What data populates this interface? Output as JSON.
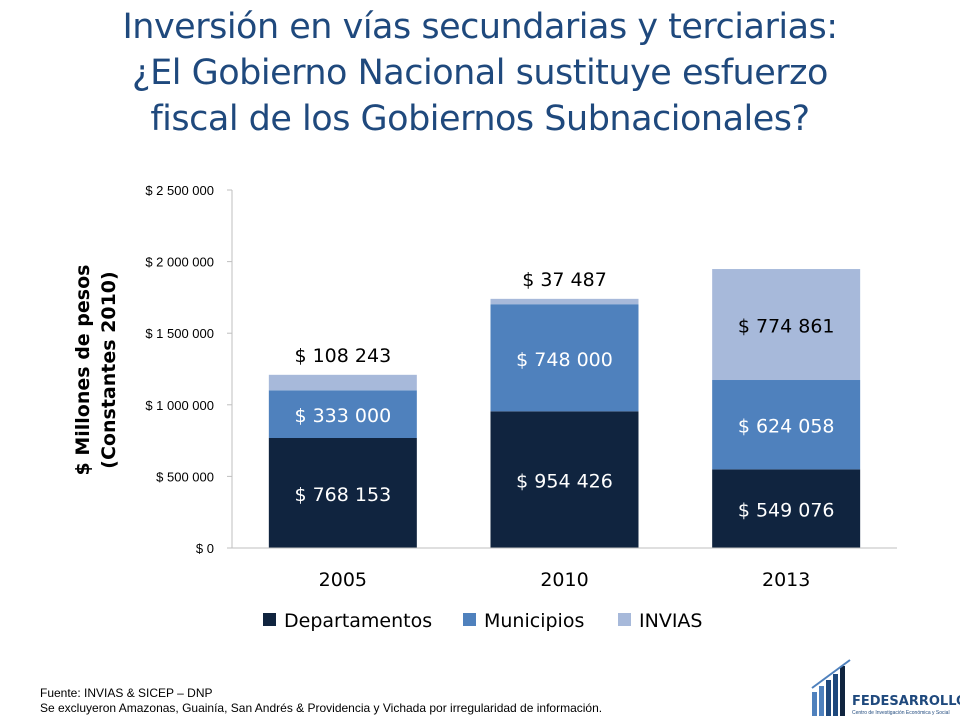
{
  "title": {
    "line1": "Inversión en vías secundarias y terciarias:",
    "line2": "¿El Gobierno Nacional sustituye esfuerzo",
    "line3": "fiscal de los Gobiernos Subnacionales?"
  },
  "chart_data": {
    "type": "bar",
    "stacked": true,
    "categories": [
      "2005",
      "2010",
      "2013"
    ],
    "series": [
      {
        "name": "Departamentos",
        "color": "#10243f",
        "values": [
          768153,
          954426,
          549076
        ],
        "labels": [
          "$ 768 153",
          "$ 954 426",
          "$ 549 076"
        ]
      },
      {
        "name": "Municipios",
        "color": "#4f81bd",
        "values": [
          333000,
          748000,
          624058
        ],
        "labels": [
          "$ 333 000",
          "$ 748 000",
          "$ 624 058"
        ]
      },
      {
        "name": "INVIAS",
        "color": "#a7b9da",
        "values": [
          108243,
          37487,
          774861
        ],
        "labels": [
          "$ 108 243",
          "$ 37 487",
          "$ 774 861"
        ]
      }
    ],
    "ylabel_line1": "$ Millones de pesos",
    "ylabel_line2": "(Constantes 2010)",
    "ylim": [
      0,
      2500000
    ],
    "yticks": [
      0,
      500000,
      1000000,
      1500000,
      2000000,
      2500000
    ],
    "ytick_labels": [
      "$ 0",
      "$ 500 000",
      "$ 1 000 000",
      "$ 1 500 000",
      "$ 2 000 000",
      "$ 2 500 000"
    ],
    "grid": false,
    "legend_position": "bottom"
  },
  "footer": {
    "source": "Fuente: INVIAS & SICEP – DNP",
    "note": "Se excluyeron Amazonas, Guainía, San Andrés & Providencia y Vichada por irregularidad de información."
  },
  "logo": {
    "name": "FEDESARROLLO",
    "subtitle": "Centro de Investigación Económica y Social"
  }
}
